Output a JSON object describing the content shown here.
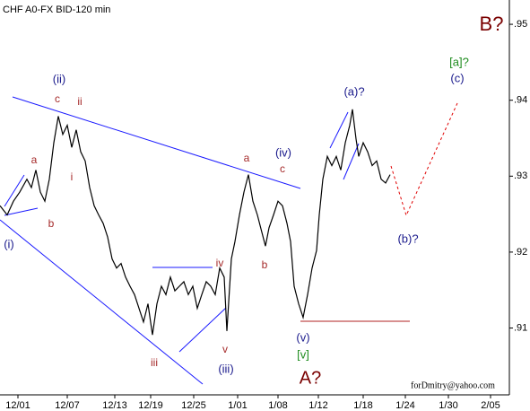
{
  "chart_data": {
    "type": "line",
    "title": "CHF A0-FX BID-120 min",
    "x": [
      0,
      8,
      15,
      22,
      30,
      35,
      40,
      45,
      50,
      55,
      60,
      65,
      70,
      75,
      80,
      85,
      90,
      95,
      100,
      105,
      110,
      115,
      120,
      125,
      130,
      135,
      140,
      145,
      150,
      155,
      160,
      165,
      170,
      175,
      180,
      185,
      190,
      195,
      200,
      205,
      210,
      215,
      220,
      225,
      230,
      235,
      240,
      245,
      250,
      253,
      258,
      262,
      267,
      272,
      277,
      282,
      287,
      292,
      296,
      300,
      305,
      310,
      315,
      320,
      324,
      328,
      333,
      338,
      343,
      348,
      353,
      356,
      360,
      365,
      370,
      375,
      380,
      385,
      390,
      393,
      397,
      400,
      405,
      410,
      415,
      420,
      425,
      430,
      435
    ],
    "series": [
      {
        "name": "CHF",
        "color": "#000000",
        "values": [
          0.9261,
          0.9249,
          0.9267,
          0.9279,
          0.9296,
          0.9285,
          0.9308,
          0.9279,
          0.9267,
          0.9296,
          0.9344,
          0.9379,
          0.9355,
          0.9367,
          0.9338,
          0.9361,
          0.9332,
          0.932,
          0.9285,
          0.9261,
          0.9249,
          0.9238,
          0.922,
          0.9191,
          0.9179,
          0.9185,
          0.9167,
          0.9155,
          0.9144,
          0.9126,
          0.9108,
          0.9132,
          0.9091,
          0.9132,
          0.9155,
          0.9144,
          0.9167,
          0.9149,
          0.9155,
          0.9161,
          0.9144,
          0.9155,
          0.9126,
          0.9144,
          0.9161,
          0.9155,
          0.9144,
          0.9179,
          0.9167,
          0.9096,
          0.9191,
          0.9214,
          0.9249,
          0.9279,
          0.9302,
          0.9267,
          0.9249,
          0.9226,
          0.9208,
          0.9232,
          0.9249,
          0.9267,
          0.9261,
          0.9238,
          0.9214,
          0.9155,
          0.9132,
          0.9114,
          0.9144,
          0.9179,
          0.9202,
          0.9249,
          0.9296,
          0.9326,
          0.9314,
          0.9326,
          0.9308,
          0.9344,
          0.9367,
          0.9388,
          0.9349,
          0.9326,
          0.9344,
          0.9332,
          0.9314,
          0.932,
          0.9296,
          0.9291,
          0.9302
        ]
      }
    ],
    "xlim": [
      0,
      568
    ],
    "xticks": [
      {
        "value": 20,
        "label": "12/01"
      },
      {
        "value": 75,
        "label": "12/07"
      },
      {
        "value": 128,
        "label": "12/13"
      },
      {
        "value": 168,
        "label": "12/19"
      },
      {
        "value": 216,
        "label": "12/25"
      },
      {
        "value": 265,
        "label": "1/01"
      },
      {
        "value": 310,
        "label": "1/08"
      },
      {
        "value": 355,
        "label": "1/12"
      },
      {
        "value": 405,
        "label": "1/18"
      },
      {
        "value": 452,
        "label": "1/24"
      },
      {
        "value": 500,
        "label": "1/30"
      },
      {
        "value": 547,
        "label": "2/05"
      }
    ],
    "ylim": [
      0.9012,
      0.9532
    ],
    "yticks": [
      {
        "value": 0.91,
        "label": ".91"
      },
      {
        "value": 0.92,
        "label": ".92"
      },
      {
        "value": 0.93,
        "label": ".93"
      },
      {
        "value": 0.94,
        "label": ".94"
      },
      {
        "value": 0.95,
        "label": ".95"
      }
    ],
    "annotations": [
      "B?",
      "[a]?",
      "(c)",
      "(ii)",
      "c",
      "ii",
      "(a)?",
      "a",
      "i",
      "b",
      "(i)",
      "a",
      "(iv)",
      "c",
      "b",
      "iv",
      "v",
      "iii",
      "(iii)",
      "(b)?",
      "(v)",
      "[v]",
      "A?",
      "forDmitry@yahoo.com"
    ]
  }
}
